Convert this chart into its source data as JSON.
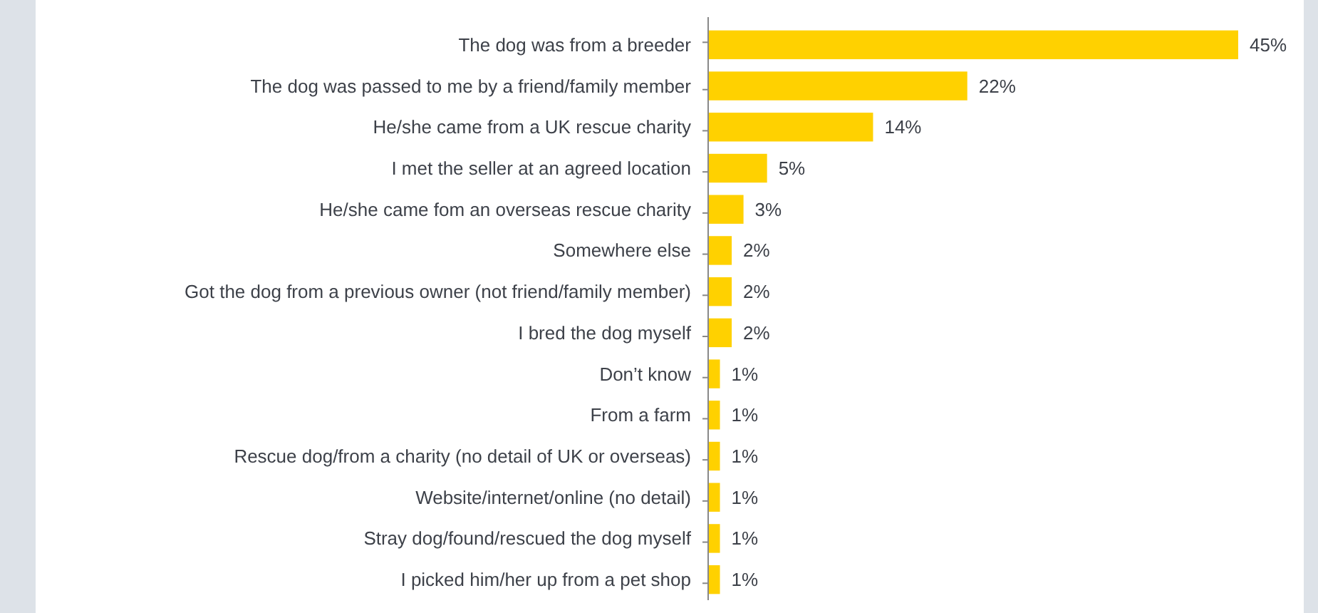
{
  "chart_data": {
    "type": "bar",
    "orientation": "horizontal",
    "categories": [
      "The dog was from a breeder",
      "The dog was passed to me by a friend/family member",
      "He/she came from a UK rescue charity",
      "I met the seller at an agreed location",
      "He/she came fom an overseas rescue charity",
      "Somewhere else",
      "Got the dog from a previous owner (not friend/family member)",
      "I bred the dog myself",
      "Don’t know",
      "From a farm",
      "Rescue dog/from a charity (no detail of UK or overseas)",
      "Website/internet/online (no detail)",
      "Stray dog/found/rescued the dog myself",
      "I picked him/her up from a pet shop"
    ],
    "values": [
      45,
      22,
      14,
      5,
      3,
      2,
      2,
      2,
      1,
      1,
      1,
      1,
      1,
      1
    ],
    "value_labels": [
      "45%",
      "22%",
      "14%",
      "5%",
      "3%",
      "2%",
      "2%",
      "2%",
      "1%",
      "1%",
      "1%",
      "1%",
      "1%",
      "1%"
    ],
    "color": "#ffd100"
  }
}
